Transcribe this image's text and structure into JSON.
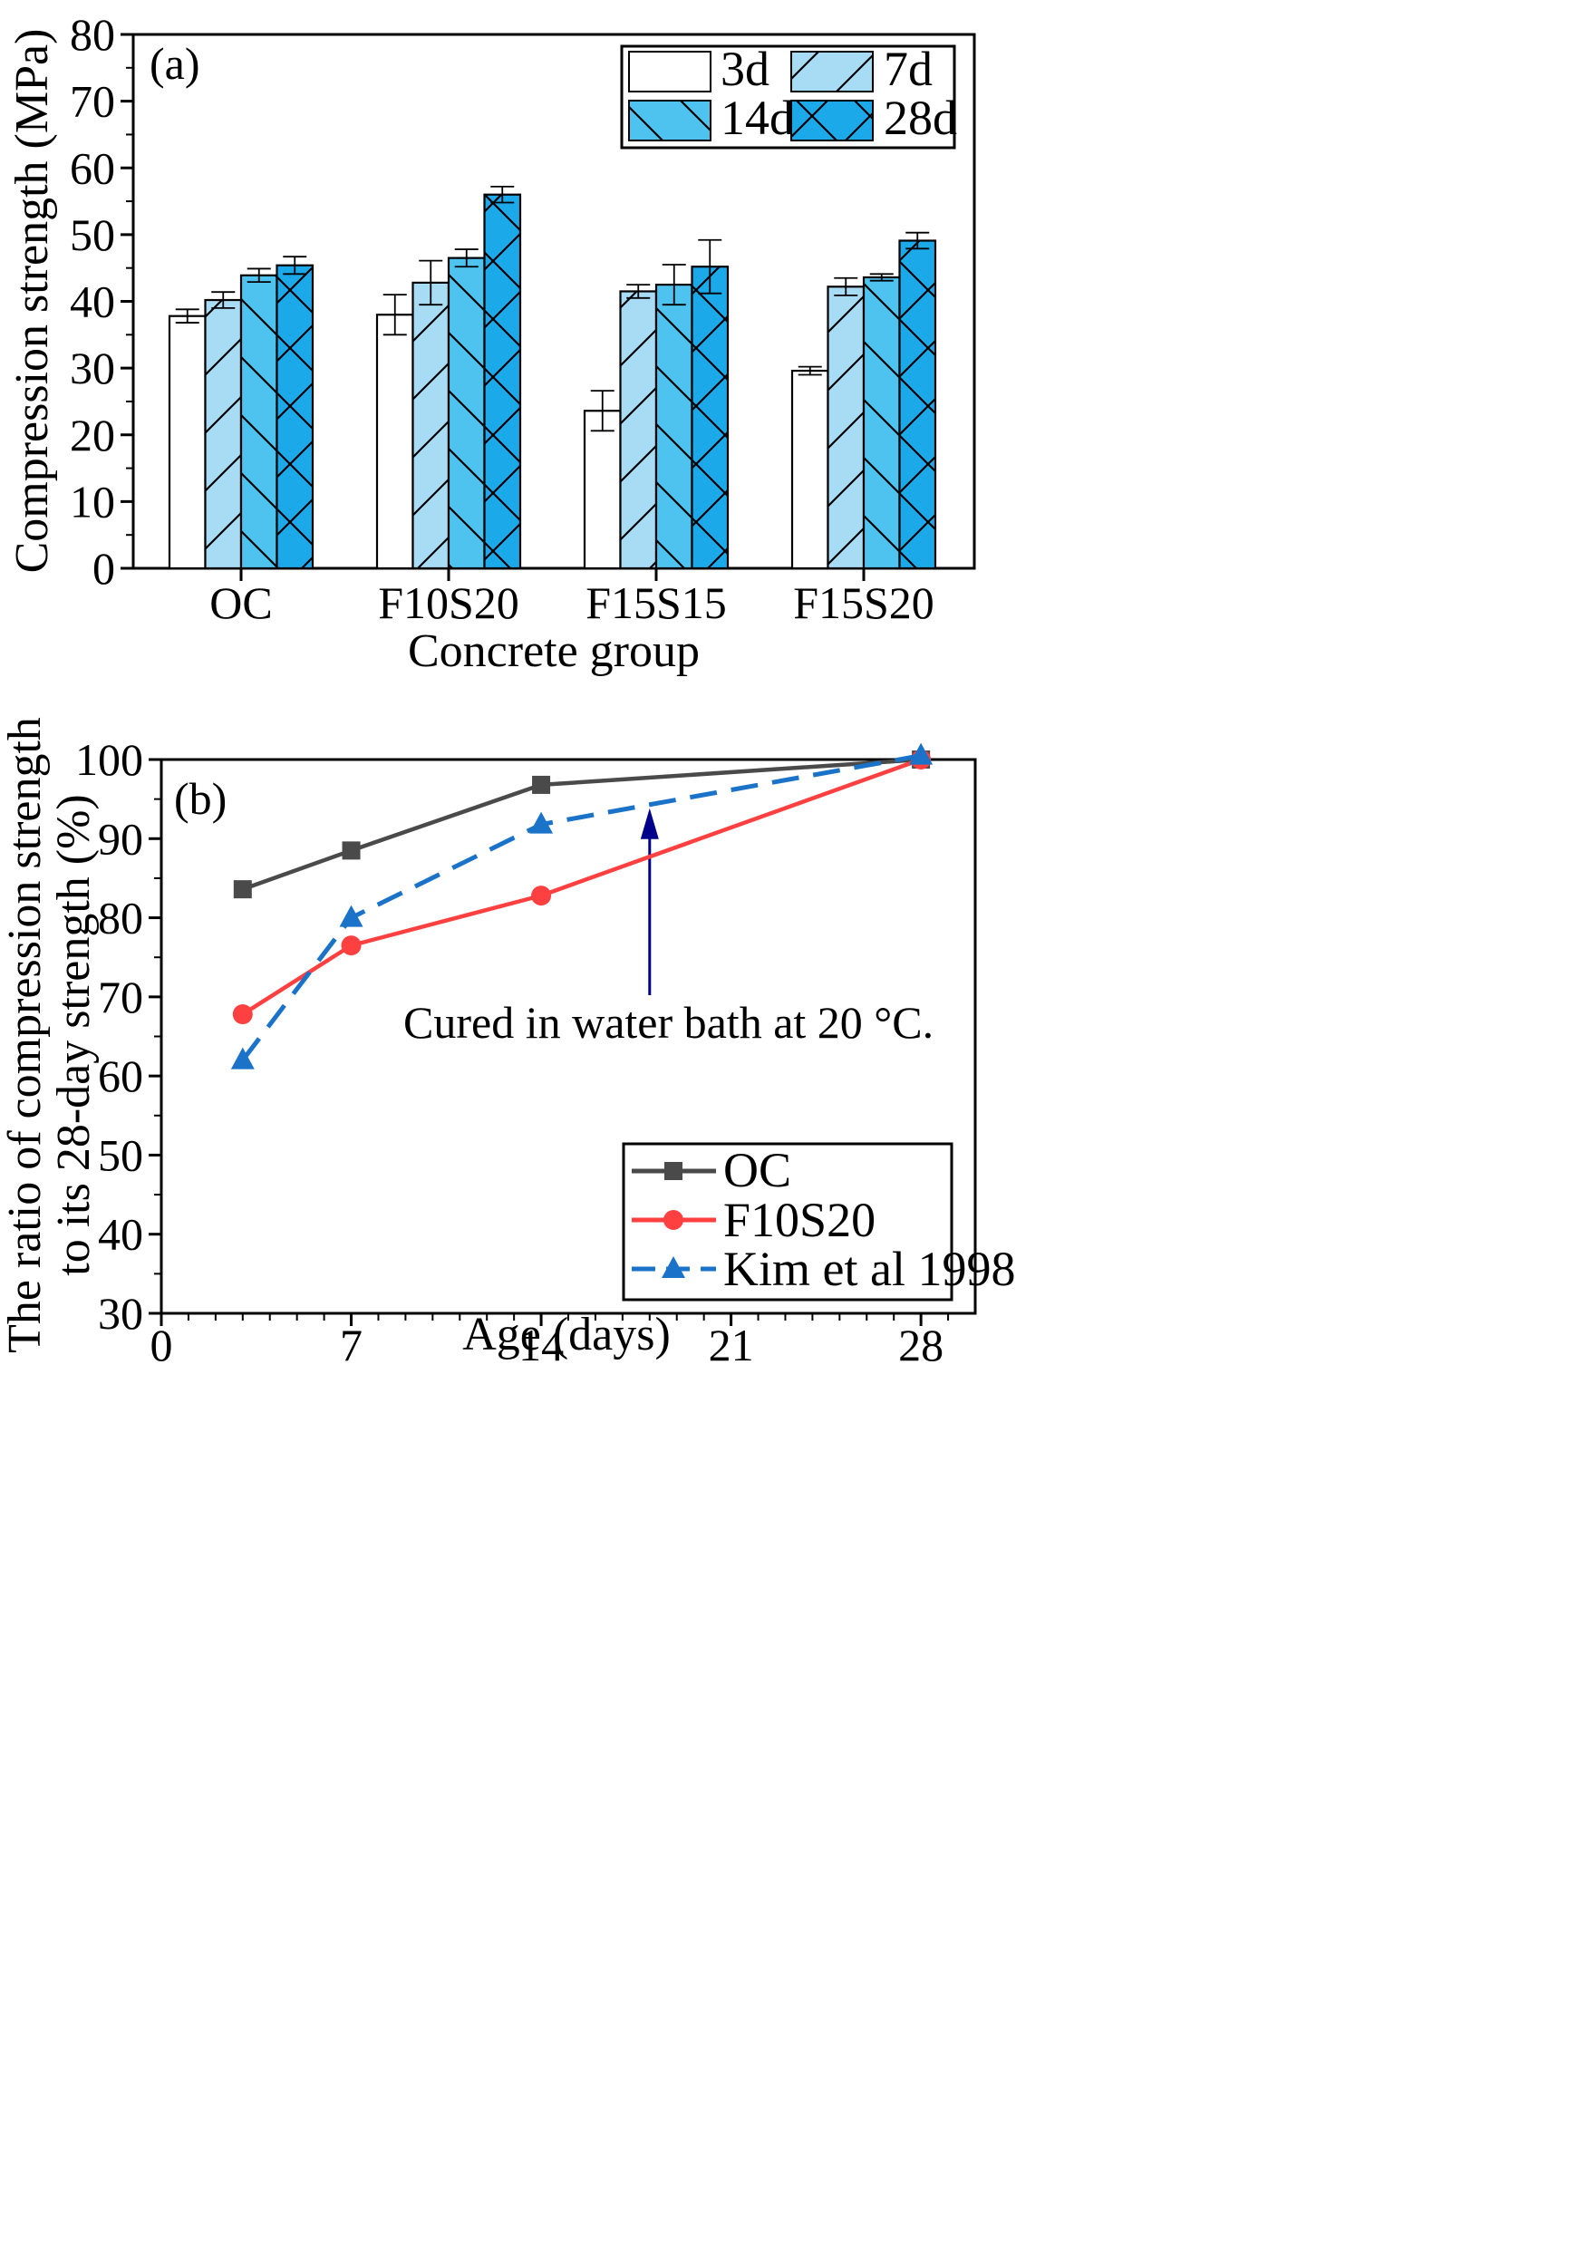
{
  "chart_data": [
    {
      "type": "bar",
      "panel_label": "(a)",
      "xlabel": "Concrete group",
      "ylabel": "Compression strength (MPa)",
      "ylim": [
        0,
        80
      ],
      "yticks": [
        0,
        10,
        20,
        30,
        40,
        50,
        60,
        70,
        80
      ],
      "categories": [
        "OC",
        "F10S20",
        "F15S15",
        "F15S20"
      ],
      "series": [
        {
          "name": "3d",
          "pattern": "none",
          "color": "#ffffff",
          "values": [
            37.8,
            38.0,
            23.6,
            29.6
          ],
          "errors": [
            1.0,
            3.0,
            3.0,
            0.6
          ]
        },
        {
          "name": "7d",
          "pattern": "diag-up",
          "color": "#a8dcf5",
          "values": [
            40.2,
            42.8,
            41.5,
            42.2
          ],
          "errors": [
            1.2,
            3.3,
            1.0,
            1.3
          ]
        },
        {
          "name": "14d",
          "pattern": "diag-down",
          "color": "#4fc3ef",
          "values": [
            43.9,
            46.5,
            42.5,
            43.6
          ],
          "errors": [
            1.0,
            1.3,
            3.0,
            0.5
          ]
        },
        {
          "name": "28d",
          "pattern": "cross",
          "color": "#1ba9ea",
          "values": [
            45.4,
            56.0,
            45.2,
            49.1
          ],
          "errors": [
            1.3,
            1.2,
            4.0,
            1.2
          ]
        }
      ],
      "legend_position": "top-right"
    },
    {
      "type": "line",
      "panel_label": "(b)",
      "xlabel": "Age (days)",
      "ylabel_line1": "The ratio of compression strength",
      "ylabel_line2": "to its 28-day strength (%)",
      "xlim": [
        0,
        30
      ],
      "ylim": [
        30,
        100
      ],
      "xticks": [
        0,
        7,
        14,
        21,
        28
      ],
      "yticks": [
        30,
        40,
        50,
        60,
        70,
        80,
        90,
        100
      ],
      "series": [
        {
          "name": "OC",
          "color": "#4a4a4a",
          "marker": "square",
          "dash": "solid",
          "x": [
            3,
            7,
            14,
            28
          ],
          "y": [
            83.6,
            88.5,
            96.8,
            100
          ]
        },
        {
          "name": "F10S20",
          "color": "#ff4040",
          "marker": "circle",
          "dash": "solid",
          "x": [
            3,
            7,
            14,
            28
          ],
          "y": [
            67.8,
            76.5,
            82.8,
            100
          ]
        },
        {
          "name": "Kim et al 1998",
          "color": "#1a73c8",
          "marker": "triangle",
          "dash": "dashed",
          "x": [
            3,
            7,
            14,
            18,
            28
          ],
          "y": [
            62.0,
            80.0,
            91.8,
            94.3,
            100.5
          ]
        }
      ],
      "annotation": {
        "text": "Cured in water bath at 20 °C.",
        "arrow_tip": [
          18,
          94.3
        ],
        "arrow_color": "#00008b"
      },
      "legend_position": "bottom-right"
    }
  ]
}
